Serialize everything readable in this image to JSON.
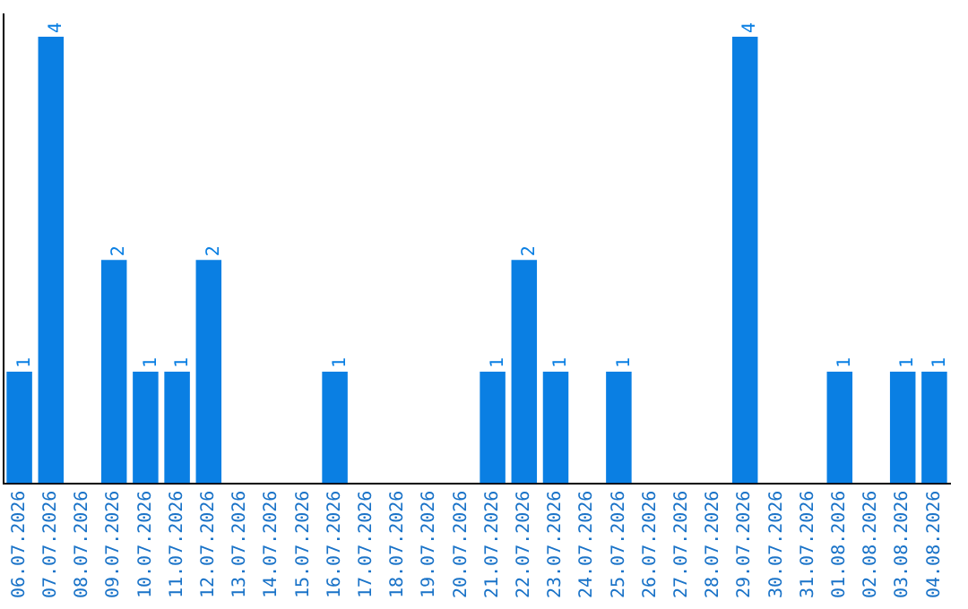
{
  "chart_data": {
    "type": "bar",
    "categories": [
      "06.07.2026",
      "07.07.2026",
      "08.07.2026",
      "09.07.2026",
      "10.07.2026",
      "11.07.2026",
      "12.07.2026",
      "13.07.2026",
      "14.07.2026",
      "15.07.2026",
      "16.07.2026",
      "17.07.2026",
      "18.07.2026",
      "19.07.2026",
      "20.07.2026",
      "21.07.2026",
      "22.07.2026",
      "23.07.2026",
      "24.07.2026",
      "25.07.2026",
      "26.07.2026",
      "27.07.2026",
      "28.07.2026",
      "29.07.2026",
      "30.07.2026",
      "31.07.2026",
      "01.08.2026",
      "02.08.2026",
      "03.08.2026",
      "04.08.2026"
    ],
    "values": [
      1,
      4,
      0,
      2,
      1,
      1,
      2,
      0,
      0,
      0,
      1,
      0,
      0,
      0,
      0,
      1,
      2,
      1,
      0,
      1,
      0,
      0,
      0,
      4,
      0,
      0,
      1,
      0,
      1,
      1
    ],
    "value_labels": [
      "1",
      "4",
      null,
      "2",
      "1",
      "1",
      "2",
      null,
      null,
      null,
      "1",
      null,
      null,
      null,
      null,
      "1",
      "2",
      "1",
      null,
      "1",
      null,
      null,
      null,
      "4",
      null,
      null,
      "1",
      null,
      "1",
      "1"
    ],
    "color": "#0a7fe3",
    "ylim": [
      0,
      4.2
    ],
    "tick_labels": "x"
  }
}
